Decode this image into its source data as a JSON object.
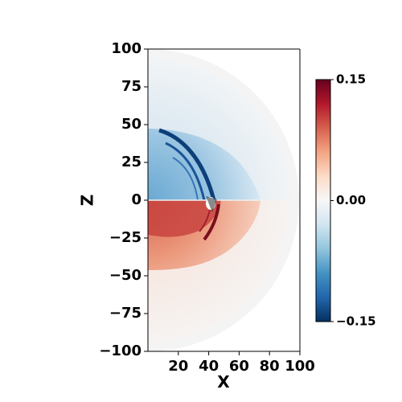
{
  "chart_data": {
    "type": "heatmap",
    "title": "",
    "xlabel": "X",
    "ylabel": "Z",
    "xlim": [
      0,
      100
    ],
    "ylim": [
      -100,
      100
    ],
    "x_ticks": [
      "20",
      "40",
      "60",
      "80",
      "100"
    ],
    "y_ticks": [
      "100",
      "75",
      "50",
      "25",
      "0",
      "−25",
      "−50",
      "−75",
      "−100"
    ],
    "colormap": "RdBu_r",
    "colorbar": {
      "min": -0.15,
      "max": 0.15,
      "ticks": [
        "0.15",
        "0.00",
        "−0.15"
      ],
      "colors": [
        "#67001f",
        "#b2182b",
        "#d6604d",
        "#f4a582",
        "#fddbc7",
        "#f7f7f7",
        "#d1e5f0",
        "#92c5de",
        "#4393c3",
        "#2166ac",
        "#053061"
      ]
    },
    "domain_radius": 100,
    "features": [
      {
        "name": "upper lobe",
        "sign": "negative",
        "x_range": [
          0,
          75
        ],
        "z_range": [
          0,
          45
        ]
      },
      {
        "name": "lower lobe",
        "sign": "positive",
        "x_range": [
          0,
          75
        ],
        "z_range": [
          -45,
          0
        ]
      },
      {
        "name": "shock front",
        "center_x": 47,
        "z_range": [
          -20,
          45
        ]
      }
    ]
  }
}
